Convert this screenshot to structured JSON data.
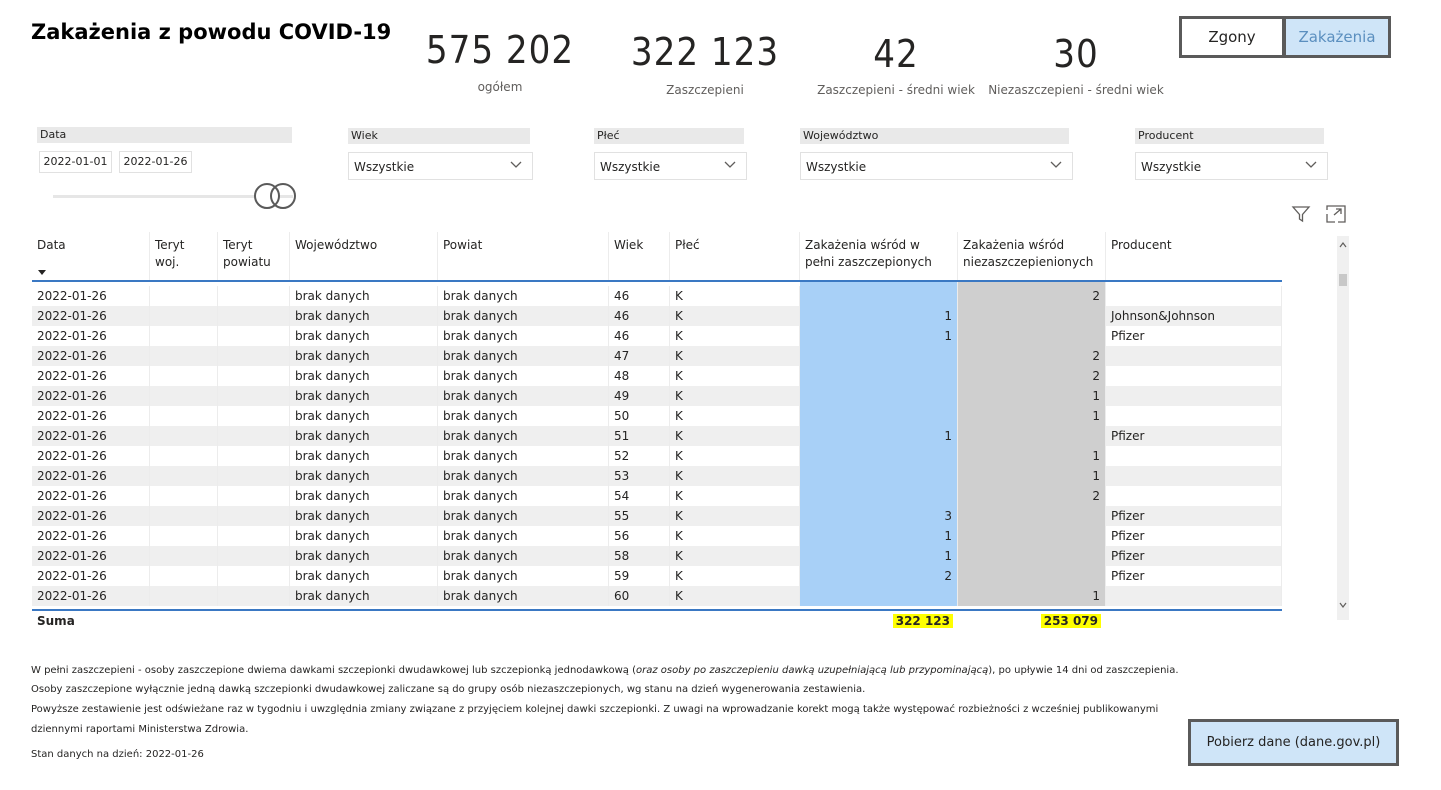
{
  "title": "Zakażenia z powodu COVID-19",
  "kpis": [
    {
      "value": "575 202",
      "label": "ogółem"
    },
    {
      "value": "322 123",
      "label": "Zaszczepieni"
    },
    {
      "value": "42",
      "label": "Zaszczepieni - średni wiek"
    },
    {
      "value": "30",
      "label": "Niezaszczepieni - średni wiek"
    }
  ],
  "toggle": {
    "zgony": "Zgony",
    "zakazenia": "Zakażenia",
    "active": "Zakażenia"
  },
  "filters": {
    "data": {
      "label": "Data",
      "from": "2022-01-01",
      "to": "2022-01-26"
    },
    "wiek": {
      "label": "Wiek",
      "value": "Wszystkie"
    },
    "plec": {
      "label": "Płeć",
      "value": "Wszystkie"
    },
    "wojewodztwo": {
      "label": "Województwo",
      "value": "Wszystkie"
    },
    "producent": {
      "label": "Producent",
      "value": "Wszystkie"
    }
  },
  "icons": {
    "filter": "filter-icon",
    "focus": "focus-mode-icon",
    "sort": "sort-desc-icon"
  },
  "table": {
    "headers": {
      "data": "Data",
      "teryt_woj": "Teryt woj.",
      "teryt_pow": "Teryt powiatu",
      "woj": "Województwo",
      "powiat": "Powiat",
      "wiek": "Wiek",
      "plec": "Płeć",
      "zasz": "Zakażenia wśród w pełni zaszczepionych",
      "niezasz": "Zakażenia wśród niezaszczepienionych",
      "producent": "Producent"
    },
    "rows": [
      {
        "data": "2022-01-26",
        "woj": "brak danych",
        "powiat": "brak danych",
        "wiek": "46",
        "plec": "K",
        "zasz": "",
        "niezasz": "2",
        "producent": ""
      },
      {
        "data": "2022-01-26",
        "woj": "brak danych",
        "powiat": "brak danych",
        "wiek": "46",
        "plec": "K",
        "zasz": "1",
        "niezasz": "",
        "producent": "Johnson&Johnson"
      },
      {
        "data": "2022-01-26",
        "woj": "brak danych",
        "powiat": "brak danych",
        "wiek": "46",
        "plec": "K",
        "zasz": "1",
        "niezasz": "",
        "producent": "Pfizer"
      },
      {
        "data": "2022-01-26",
        "woj": "brak danych",
        "powiat": "brak danych",
        "wiek": "47",
        "plec": "K",
        "zasz": "",
        "niezasz": "2",
        "producent": ""
      },
      {
        "data": "2022-01-26",
        "woj": "brak danych",
        "powiat": "brak danych",
        "wiek": "48",
        "plec": "K",
        "zasz": "",
        "niezasz": "2",
        "producent": ""
      },
      {
        "data": "2022-01-26",
        "woj": "brak danych",
        "powiat": "brak danych",
        "wiek": "49",
        "plec": "K",
        "zasz": "",
        "niezasz": "1",
        "producent": ""
      },
      {
        "data": "2022-01-26",
        "woj": "brak danych",
        "powiat": "brak danych",
        "wiek": "50",
        "plec": "K",
        "zasz": "",
        "niezasz": "1",
        "producent": ""
      },
      {
        "data": "2022-01-26",
        "woj": "brak danych",
        "powiat": "brak danych",
        "wiek": "51",
        "plec": "K",
        "zasz": "1",
        "niezasz": "",
        "producent": "Pfizer"
      },
      {
        "data": "2022-01-26",
        "woj": "brak danych",
        "powiat": "brak danych",
        "wiek": "52",
        "plec": "K",
        "zasz": "",
        "niezasz": "1",
        "producent": ""
      },
      {
        "data": "2022-01-26",
        "woj": "brak danych",
        "powiat": "brak danych",
        "wiek": "53",
        "plec": "K",
        "zasz": "",
        "niezasz": "1",
        "producent": ""
      },
      {
        "data": "2022-01-26",
        "woj": "brak danych",
        "powiat": "brak danych",
        "wiek": "54",
        "plec": "K",
        "zasz": "",
        "niezasz": "2",
        "producent": ""
      },
      {
        "data": "2022-01-26",
        "woj": "brak danych",
        "powiat": "brak danych",
        "wiek": "55",
        "plec": "K",
        "zasz": "3",
        "niezasz": "",
        "producent": "Pfizer"
      },
      {
        "data": "2022-01-26",
        "woj": "brak danych",
        "powiat": "brak danych",
        "wiek": "56",
        "plec": "K",
        "zasz": "1",
        "niezasz": "",
        "producent": "Pfizer"
      },
      {
        "data": "2022-01-26",
        "woj": "brak danych",
        "powiat": "brak danych",
        "wiek": "58",
        "plec": "K",
        "zasz": "1",
        "niezasz": "",
        "producent": "Pfizer"
      },
      {
        "data": "2022-01-26",
        "woj": "brak danych",
        "powiat": "brak danych",
        "wiek": "59",
        "plec": "K",
        "zasz": "2",
        "niezasz": "",
        "producent": "Pfizer"
      },
      {
        "data": "2022-01-26",
        "woj": "brak danych",
        "powiat": "brak danych",
        "wiek": "60",
        "plec": "K",
        "zasz": "",
        "niezasz": "1",
        "producent": ""
      }
    ],
    "total": {
      "label": "Suma",
      "zasz": "322 123",
      "niezasz": "253 079"
    }
  },
  "notes": {
    "line1_a": "W pełni zaszczepieni - osoby zaszczepione dwiema dawkami szczepionki dwudawkowej lub szczepionką jednodawkową (",
    "line1_b": "oraz osoby po zaszczepieniu dawką uzupełniającą lub przypominającą",
    "line1_c": "), po upływie 14 dni od zaszczepienia.",
    "line2": "Osoby zaszczepione wyłącznie jedną dawką szczepionki dwudawkowej zaliczane są do grupy osób niezaszczepionych, wg stanu na dzień wygenerowania zestawienia.",
    "line3": "Powyższe zestawienie jest odświeżane raz w tygodniu i uwzględnia zmiany związane z przyjęciem kolejnej dawki szczepionki. Z uwagi na wprowadzanie korekt mogą także występować rozbieżności z wcześniej publikowanymi",
    "line4": "dziennymi raportami Ministerstwa Zdrowia.",
    "stan": "Stan danych na dzień: 2022-01-26"
  },
  "download_button": "Pobierz dane (dane.gov.pl)"
}
